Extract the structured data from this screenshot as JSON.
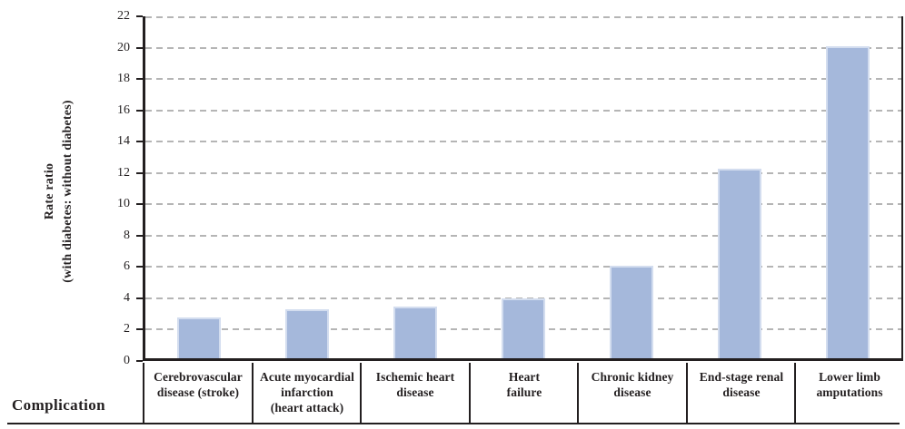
{
  "chart_data": {
    "type": "bar",
    "title": "",
    "categories": [
      "Cerebrovascular disease (stroke)",
      "Acute myocardial infarction (heart attack)",
      "Ischemic heart disease",
      "Heart failure",
      "Chronic kidney disease",
      "End-stage renal disease",
      "Lower limb amputations"
    ],
    "category_lines": [
      [
        "Cerebrovascular",
        "disease (stroke)"
      ],
      [
        "Acute myocardial",
        "infarction",
        "(heart attack)"
      ],
      [
        "Ischemic heart",
        "disease"
      ],
      [
        "Heart",
        "failure"
      ],
      [
        "Chronic kidney",
        "disease"
      ],
      [
        "End-stage renal",
        "disease"
      ],
      [
        "Lower limb",
        "amputations"
      ]
    ],
    "values": [
      2.6,
      3.1,
      3.3,
      3.8,
      5.9,
      12.1,
      19.9
    ],
    "xlabel": "Complication",
    "ylabel_line1": "Rate ratio",
    "ylabel_line2": "(with diabetes: without diabetes)",
    "ylim": [
      0,
      22
    ],
    "ytick_step": 2,
    "yticks": [
      0,
      2,
      4,
      6,
      8,
      10,
      12,
      14,
      16,
      18,
      20,
      22
    ],
    "grid": "horizontal-dashed",
    "legend": "none",
    "colors": {
      "bar_fill": "#a5b8db",
      "bar_edge": "#d3ddef",
      "grid": "#b5b5b5",
      "axis": "#231f20",
      "text": "#231f20"
    }
  }
}
